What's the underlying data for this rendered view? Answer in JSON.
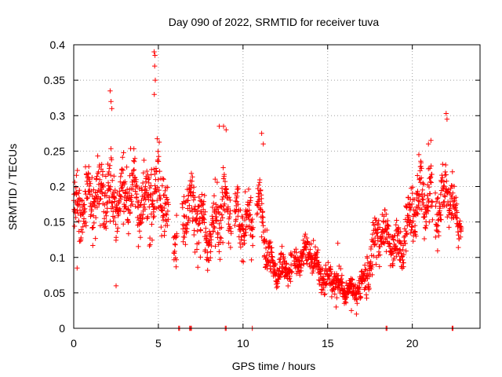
{
  "chart_data": {
    "type": "scatter",
    "title": "Day 090 of 2022, SRMTID for receiver tuva",
    "xlabel": "GPS time / hours",
    "ylabel": "SRMTID / TECUs",
    "xlim": [
      0,
      24
    ],
    "ylim": [
      0,
      0.4
    ],
    "xticks": [
      0,
      5,
      10,
      15,
      20
    ],
    "xtick_labels": [
      "0",
      "5",
      "10",
      "15",
      "20"
    ],
    "yticks": [
      0,
      0.05,
      0.1,
      0.15,
      0.2,
      0.25,
      0.3,
      0.35,
      0.4
    ],
    "ytick_labels": [
      "0",
      "0.05",
      "0.1",
      "0.15",
      "0.2",
      "0.25",
      "0.3",
      "0.35",
      "0.4"
    ],
    "grid": true,
    "marker": "+",
    "series": [
      {
        "name": "SRMTID",
        "color": "#ff0000",
        "profile": {
          "x": [
            0.0,
            0.5,
            1.0,
            1.5,
            2.0,
            2.5,
            3.0,
            3.5,
            4.0,
            4.5,
            5.0,
            5.5,
            6.0,
            6.5,
            7.0,
            7.5,
            8.0,
            8.5,
            9.0,
            9.5,
            10.0,
            10.5,
            11.0,
            11.5,
            12.0,
            12.5,
            13.0,
            13.5,
            14.0,
            14.5,
            15.0,
            15.5,
            16.0,
            16.5,
            17.0,
            17.5,
            18.0,
            18.5,
            19.0,
            19.5,
            20.0,
            20.5,
            21.0,
            21.5,
            22.0,
            22.5,
            23.0
          ],
          "y_center": [
            0.16,
            0.17,
            0.18,
            0.19,
            0.19,
            0.18,
            0.19,
            0.19,
            0.17,
            0.19,
            0.2,
            0.16,
            0.12,
            0.16,
            0.18,
            0.14,
            0.13,
            0.16,
            0.17,
            0.16,
            0.15,
            0.14,
            0.17,
            0.1,
            0.08,
            0.085,
            0.09,
            0.1,
            0.11,
            0.08,
            0.07,
            0.065,
            0.055,
            0.055,
            0.06,
            0.09,
            0.14,
            0.13,
            0.11,
            0.12,
            0.17,
            0.19,
            0.18,
            0.16,
            0.2,
            0.16,
            0.14
          ],
          "spread": [
            0.05,
            0.05,
            0.06,
            0.06,
            0.06,
            0.06,
            0.06,
            0.06,
            0.05,
            0.06,
            0.07,
            0.05,
            0.04,
            0.05,
            0.05,
            0.05,
            0.05,
            0.06,
            0.06,
            0.05,
            0.05,
            0.04,
            0.05,
            0.03,
            0.025,
            0.025,
            0.025,
            0.03,
            0.03,
            0.025,
            0.025,
            0.025,
            0.02,
            0.02,
            0.025,
            0.035,
            0.04,
            0.04,
            0.04,
            0.04,
            0.05,
            0.05,
            0.05,
            0.045,
            0.05,
            0.04,
            0.03
          ]
        },
        "data_gaps": [
          [
            5.6,
            5.9
          ],
          [
            6.1,
            6.4
          ],
          [
            9.3,
            9.5
          ],
          [
            10.6,
            10.8
          ],
          [
            12.9,
            13.0
          ],
          [
            21.2,
            21.35
          ],
          [
            22.9,
            24.0
          ]
        ],
        "outliers": [
          {
            "x": 4.75,
            "y": 0.39
          },
          {
            "x": 4.8,
            "y": 0.385
          },
          {
            "x": 4.78,
            "y": 0.37
          },
          {
            "x": 4.82,
            "y": 0.35
          },
          {
            "x": 4.76,
            "y": 0.33
          },
          {
            "x": 2.15,
            "y": 0.335
          },
          {
            "x": 2.2,
            "y": 0.32
          },
          {
            "x": 2.25,
            "y": 0.31
          },
          {
            "x": 22.0,
            "y": 0.303
          },
          {
            "x": 22.05,
            "y": 0.295
          },
          {
            "x": 21.1,
            "y": 0.265
          },
          {
            "x": 20.95,
            "y": 0.26
          },
          {
            "x": 11.1,
            "y": 0.275
          },
          {
            "x": 11.2,
            "y": 0.26
          },
          {
            "x": 8.6,
            "y": 0.285
          },
          {
            "x": 8.85,
            "y": 0.285
          },
          {
            "x": 9.0,
            "y": 0.28
          },
          {
            "x": 15.6,
            "y": 0.12
          },
          {
            "x": 16.4,
            "y": 0.025
          },
          {
            "x": 16.7,
            "y": 0.02
          },
          {
            "x": 15.5,
            "y": 0.03
          },
          {
            "x": 2.5,
            "y": 0.06
          },
          {
            "x": 0.2,
            "y": 0.085
          }
        ],
        "zero_values_at_x": [
          6.2,
          6.25,
          6.85,
          6.9,
          6.95,
          8.95,
          9.0,
          10.55,
          18.45,
          18.5,
          22.35,
          22.4
        ]
      }
    ]
  }
}
